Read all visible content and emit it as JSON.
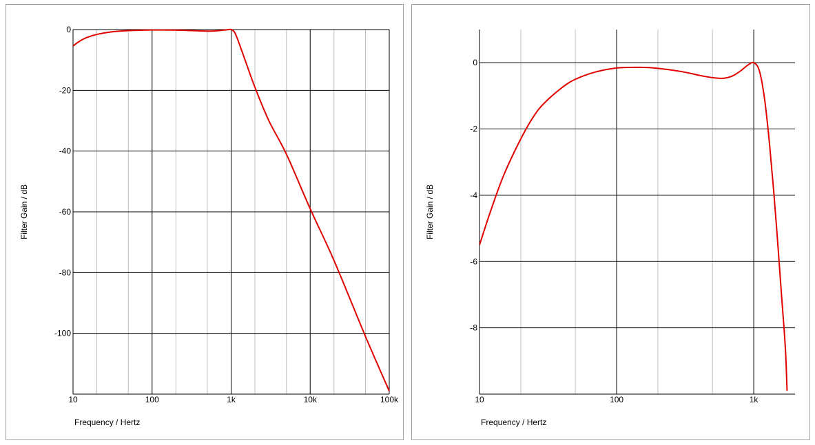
{
  "colors": {
    "curve": "#e00000",
    "grid_major": "#000000",
    "grid_minor": "#c0c0c0",
    "border": "#a0a0a0"
  },
  "chart_data": [
    {
      "type": "line",
      "xscale": "log",
      "xlim": [
        10,
        100000
      ],
      "ylim": [
        -120,
        0
      ],
      "x_ticks": [
        10,
        100,
        1000,
        10000,
        100000
      ],
      "x_tick_labels": [
        "10",
        "100",
        "1k",
        "10k",
        "100k"
      ],
      "y_ticks": [
        0,
        -20,
        -40,
        -60,
        -80,
        -100
      ],
      "y_tick_labels": [
        "0",
        "-20",
        "-40",
        "-60",
        "-80",
        "-100"
      ],
      "xlabel": "Frequency / Hertz",
      "ylabel": "Filter Gain / dB",
      "grid": true,
      "series": [
        {
          "color": "#e00000",
          "x": [
            10,
            12,
            15,
            20,
            30,
            50,
            100,
            200,
            500,
            700,
            900,
            1000,
            1100,
            1200,
            1500,
            2000,
            3000,
            5000,
            10000,
            20000,
            50000,
            100000
          ],
          "y": [
            -5.4,
            -3.9,
            -2.6,
            -1.6,
            -0.8,
            -0.35,
            -0.15,
            -0.18,
            -0.5,
            -0.35,
            -0.05,
            0,
            -0.8,
            -3,
            -10,
            -19,
            -30,
            -41,
            -59,
            -76,
            -101,
            -119
          ]
        }
      ]
    },
    {
      "type": "line",
      "xscale": "log",
      "xlim": [
        10,
        2000
      ],
      "ylim": [
        -10,
        1
      ],
      "x_ticks": [
        10,
        100,
        1000
      ],
      "x_tick_labels": [
        "10",
        "100",
        "1k"
      ],
      "y_ticks": [
        0,
        -2,
        -4,
        -6,
        -8
      ],
      "y_tick_labels": [
        "0",
        "-2",
        "-4",
        "-6",
        "-8"
      ],
      "xlabel": "Frequency / Hertz",
      "ylabel": "Filter Gain / dB",
      "grid": true,
      "series": [
        {
          "color": "#e00000",
          "x": [
            10,
            12,
            15,
            20,
            25,
            30,
            40,
            50,
            70,
            100,
            150,
            200,
            300,
            400,
            500,
            600,
            700,
            800,
            900,
            1000,
            1100,
            1200,
            1300,
            1400,
            1500,
            1600,
            1700,
            1750
          ],
          "y": [
            -5.5,
            -4.5,
            -3.4,
            -2.3,
            -1.6,
            -1.2,
            -0.75,
            -0.5,
            -0.28,
            -0.16,
            -0.14,
            -0.17,
            -0.27,
            -0.38,
            -0.45,
            -0.47,
            -0.4,
            -0.25,
            -0.08,
            0,
            -0.25,
            -1.1,
            -2.4,
            -3.9,
            -5.5,
            -7.1,
            -8.6,
            -9.9
          ]
        }
      ]
    }
  ]
}
